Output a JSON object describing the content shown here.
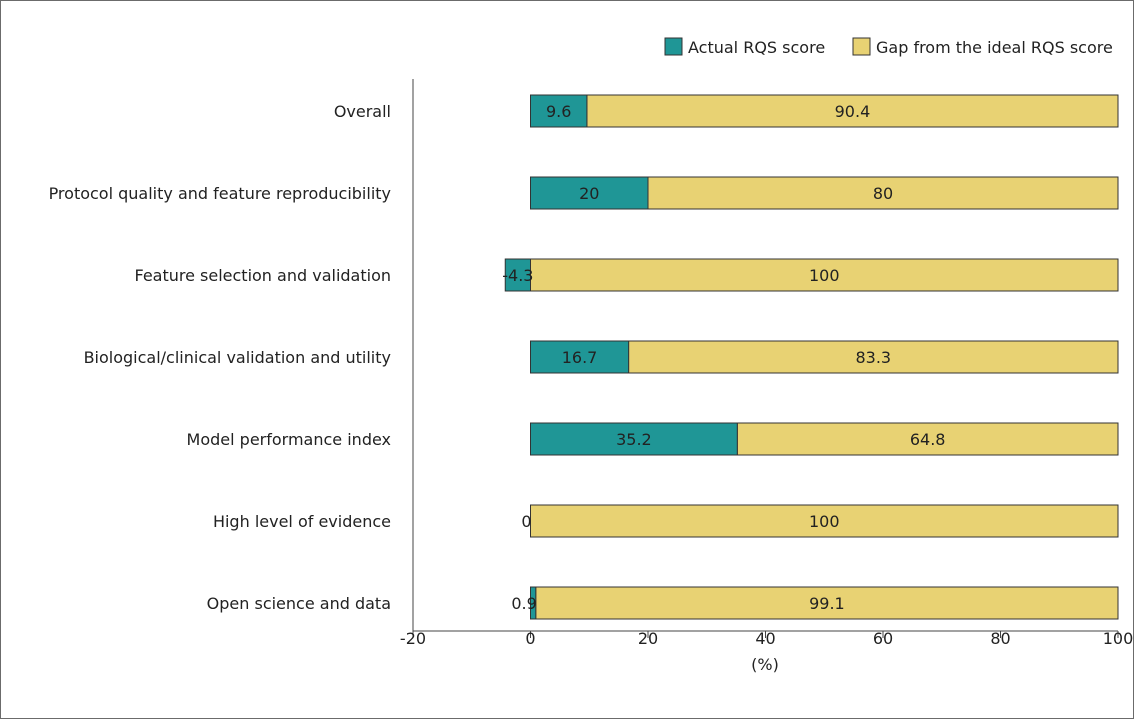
{
  "chart_data": {
    "type": "bar",
    "orientation": "horizontal",
    "stacked": true,
    "categories": [
      "Overall",
      "Protocol quality and feature reproducibility",
      "Feature selection and validation",
      "Biological/clinical validation and utility",
      "Model performance index",
      "High level of evidence",
      "Open science and data"
    ],
    "series": [
      {
        "name": "Actual RQS score",
        "color": "#1f9696",
        "values": [
          9.6,
          20,
          -4.3,
          16.7,
          35.2,
          0,
          0.9
        ]
      },
      {
        "name": "Gap from the ideal RQS score",
        "color": "#e8d273",
        "values": [
          90.4,
          80,
          100,
          83.3,
          64.8,
          100,
          99.1
        ]
      }
    ],
    "data_labels": {
      "Actual RQS score": [
        "9.6",
        "20",
        "-4.3",
        "16.7",
        "35.2",
        "0",
        "0.9"
      ],
      "Gap from the ideal RQS score": [
        "90.4",
        "80",
        "100",
        "83.3",
        "64.8",
        "100",
        "99.1"
      ]
    },
    "xlabel": "(%)",
    "ylabel": "",
    "xlim": [
      -20,
      100
    ],
    "xticks": [
      -20,
      0,
      20,
      40,
      60,
      80,
      100
    ],
    "xtick_labels": [
      "-20",
      "0",
      "20",
      "40",
      "60",
      "80",
      "100"
    ],
    "grid": false,
    "legend_position": "top-right"
  }
}
